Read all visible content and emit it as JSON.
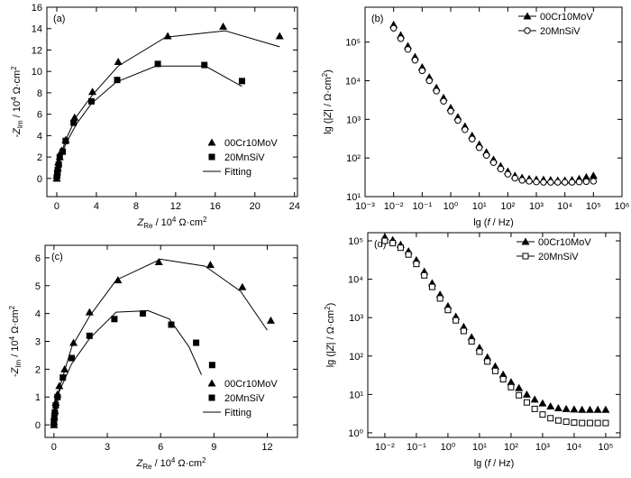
{
  "chart_data": [
    {
      "type": "scatter",
      "panel": "(a)",
      "xlabel": [
        "Z",
        "Re",
        " / 10",
        "4",
        " Ω·cm",
        "2"
      ],
      "ylabel": [
        "-Z",
        "Im",
        " / 10",
        "4",
        " Ω·cm",
        "2"
      ],
      "xlim": [
        -1,
        24.3
      ],
      "ylim": [
        -1.7,
        16
      ],
      "xticks": [
        0,
        4,
        8,
        12,
        16,
        20,
        24
      ],
      "yticks": [
        0,
        2,
        4,
        6,
        8,
        10,
        12,
        14,
        16
      ],
      "legend": "lower right",
      "series": [
        {
          "name": "00Cr10MoV",
          "color": "#000000",
          "marker": "triangle",
          "x": [
            0,
            0,
            0.05,
            0.1,
            0.15,
            0.3,
            0.5,
            0.9,
            1.8,
            3.6,
            6.2,
            11.2,
            16.8,
            22.5
          ],
          "values": [
            0,
            0.3,
            0.6,
            1,
            1.5,
            2,
            2.6,
            3.6,
            5.7,
            8.1,
            10.9,
            13.3,
            14.2,
            13.3
          ]
        },
        {
          "name": "20MnSiV",
          "color": "#000000",
          "marker": "square",
          "x": [
            0,
            0.05,
            0.1,
            0.2,
            0.3,
            0.6,
            0.9,
            1.7,
            3.5,
            6.1,
            10.2,
            14.9,
            18.7
          ],
          "values": [
            0,
            0.4,
            0.8,
            1.3,
            2,
            2.5,
            3.5,
            5.2,
            7.2,
            9.2,
            10.7,
            10.6,
            9.1
          ]
        },
        {
          "name": "Fitting",
          "color": "#000000",
          "marker": "line",
          "x": [
            0,
            0.5,
            1,
            2,
            3.6,
            6.2,
            11,
            17,
            22.5
          ],
          "values": [
            0,
            2.5,
            3.8,
            5.8,
            7.8,
            10.5,
            13.2,
            13.8,
            12.3
          ]
        },
        {
          "color": "#000000",
          "marker": "line",
          "x": [
            0,
            0.5,
            1,
            2,
            3.5,
            6,
            10,
            15,
            18.7
          ],
          "values": [
            0,
            2.3,
            3.4,
            5.1,
            7,
            9,
            10.5,
            10.5,
            8.6
          ]
        }
      ]
    },
    {
      "type": "scatter",
      "panel": "(b)",
      "xscale": "log",
      "yscale": "log",
      "xlabel": [
        "lg (",
        "f",
        " / Hz)"
      ],
      "ylabel": [
        "lg (|",
        "Z",
        "| / Ω·cm",
        "2",
        ")"
      ],
      "xlim": [
        0.001,
        1000000
      ],
      "ylim": [
        10,
        800000
      ],
      "xticks": [
        {
          "value": 0.001,
          "label": "10⁻³"
        },
        {
          "value": 0.01,
          "label": "10⁻²"
        },
        {
          "value": 0.1,
          "label": "10⁻¹"
        },
        {
          "value": 1,
          "label": "10⁰"
        },
        {
          "value": 10,
          "label": "10¹"
        },
        {
          "value": 100,
          "label": "10²"
        },
        {
          "value": 1000,
          "label": "10³"
        },
        {
          "value": 10000,
          "label": "10⁴"
        },
        {
          "value": 100000,
          "label": "10⁵"
        },
        {
          "value": 1000000,
          "label": "10⁶"
        }
      ],
      "yticks": [
        {
          "value": 10,
          "label": "10¹"
        },
        {
          "value": 100,
          "label": "10²"
        },
        {
          "value": 1000,
          "label": "10³"
        },
        {
          "value": 10000,
          "label": "10⁴"
        },
        {
          "value": 100000,
          "label": "10⁵"
        }
      ],
      "legend": "upper right",
      "series": [
        {
          "name": "00Cr10MoV",
          "color": "#000000",
          "marker": "triangle",
          "x": [
            0.01,
            0.0178,
            0.0316,
            0.0562,
            0.1,
            0.178,
            0.316,
            0.562,
            1,
            1.78,
            3.16,
            5.62,
            10,
            17.8,
            31.6,
            56.2,
            100,
            178,
            316,
            562,
            1000,
            1780,
            3160,
            5620,
            10000,
            17800,
            31600,
            56200,
            100000
          ],
          "values": [
            282000,
            151000,
            79400,
            41700,
            22400,
            12300,
            6610,
            3630,
            2000,
            1150,
            661,
            380,
            224,
            141,
            91,
            62,
            45,
            35,
            31,
            29,
            28,
            27.5,
            27,
            26.3,
            26.3,
            27,
            29,
            32,
            35
          ]
        },
        {
          "name": "20MnSiV",
          "color": "#000000",
          "marker": "circle-open",
          "x": [
            0.01,
            0.0178,
            0.0316,
            0.0562,
            0.1,
            0.178,
            0.316,
            0.562,
            1,
            1.78,
            3.16,
            5.62,
            10,
            17.8,
            31.6,
            56.2,
            100,
            178,
            316,
            562,
            1000,
            1780,
            3160,
            5620,
            10000,
            17800,
            31600,
            56200,
            100000
          ],
          "values": [
            229000,
            123000,
            64600,
            34000,
            18200,
            10000,
            5400,
            2950,
            1630,
            940,
            540,
            310,
            185,
            117,
            76,
            52,
            38,
            30,
            26.5,
            25,
            24,
            23.5,
            23.5,
            23.5,
            23.5,
            23.5,
            24,
            24.5,
            25
          ]
        }
      ]
    },
    {
      "type": "scatter",
      "panel": "(c)",
      "xlabel": [
        "Z",
        "Re",
        " / 10",
        "4",
        " Ω·cm",
        "2"
      ],
      "ylabel": [
        "-Z",
        "Im",
        " / 10",
        "4",
        " Ω·cm",
        "2"
      ],
      "xlim": [
        -0.5,
        13.7
      ],
      "ylim": [
        -0.45,
        6.45
      ],
      "xticks": [
        0,
        3,
        6,
        9,
        12
      ],
      "yticks": [
        0,
        1,
        2,
        3,
        4,
        5,
        6
      ],
      "legend": "lower right",
      "series": [
        {
          "name": "00Cr10MoV",
          "color": "#000000",
          "marker": "triangle",
          "x": [
            0,
            0,
            0.02,
            0.05,
            0.1,
            0.2,
            0.3,
            0.6,
            1.1,
            2,
            3.6,
            5.9,
            8.8,
            10.6,
            12.2
          ],
          "values": [
            0,
            0.1,
            0.3,
            0.5,
            0.8,
            1.1,
            1.4,
            2,
            2.95,
            4.05,
            5.2,
            5.85,
            5.75,
            4.95,
            3.75
          ]
        },
        {
          "name": "20MnSiV",
          "color": "#000000",
          "marker": "square",
          "x": [
            0,
            0,
            0.02,
            0.05,
            0.1,
            0.2,
            0.5,
            1,
            2,
            3.4,
            5,
            6.6,
            8,
            8.9
          ],
          "values": [
            0,
            0.1,
            0.25,
            0.45,
            0.7,
            1,
            1.7,
            2.4,
            3.2,
            3.8,
            4,
            3.6,
            2.95,
            2.15
          ]
        },
        {
          "name": "Fitting",
          "color": "#000000",
          "marker": "line",
          "x": [
            0,
            0.3,
            1,
            2,
            3.5,
            6,
            8.5,
            10.5,
            12
          ],
          "values": [
            0,
            1.3,
            2.8,
            3.9,
            5.2,
            5.95,
            5.7,
            4.8,
            3.4
          ]
        },
        {
          "color": "#000000",
          "marker": "line",
          "x": [
            0,
            0.3,
            1,
            2,
            3.5,
            5.3,
            6.5,
            7.6,
            8.3
          ],
          "values": [
            0,
            1.2,
            2.2,
            3.1,
            4.05,
            4.1,
            3.8,
            2.8,
            1.8
          ]
        }
      ]
    },
    {
      "type": "scatter",
      "panel": "(d)",
      "xscale": "log",
      "yscale": "log",
      "xlabel": [
        "lg (",
        "f",
        " / Hz)"
      ],
      "ylabel": [
        "lg (|",
        "Z",
        "| / Ω·cm",
        "2",
        ")"
      ],
      "xlim": [
        0.00288,
        288000
      ],
      "ylim": [
        0.76,
        163000
      ],
      "xticks": [
        {
          "value": 0.01,
          "label": "10⁻²"
        },
        {
          "value": 0.1,
          "label": "10⁻¹"
        },
        {
          "value": 1,
          "label": "10⁰"
        },
        {
          "value": 10,
          "label": "10¹"
        },
        {
          "value": 100,
          "label": "10²"
        },
        {
          "value": 1000,
          "label": "10³"
        },
        {
          "value": 10000,
          "label": "10⁴"
        },
        {
          "value": 100000,
          "label": "10⁵"
        }
      ],
      "yticks": [
        {
          "value": 1,
          "label": "10⁰"
        },
        {
          "value": 10,
          "label": "10¹"
        },
        {
          "value": 100,
          "label": "10²"
        },
        {
          "value": 1000,
          "label": "10³"
        },
        {
          "value": 10000,
          "label": "10⁴"
        },
        {
          "value": 100000,
          "label": "10⁵"
        }
      ],
      "legend": "upper right",
      "series": [
        {
          "name": "00Cr10MoV",
          "color": "#000000",
          "marker": "triangle",
          "x": [
            0.01,
            0.0178,
            0.0316,
            0.0562,
            0.1,
            0.178,
            0.316,
            0.562,
            1,
            1.78,
            3.16,
            5.62,
            10,
            17.8,
            31.6,
            56.2,
            100,
            178,
            316,
            562,
            1000,
            1780,
            3160,
            5620,
            10000,
            17800,
            31600,
            56200,
            100000
          ],
          "values": [
            126000,
            105000,
            79400,
            53700,
            31600,
            15800,
            7940,
            3980,
            2000,
            1070,
            575,
            309,
            166,
            93,
            54,
            33,
            21,
            14.8,
            10,
            7.4,
            5.9,
            4.9,
            4.4,
            4.2,
            4.1,
            4,
            4,
            4,
            4
          ]
        },
        {
          "name": "20MnSiV",
          "color": "#000000",
          "marker": "square-open",
          "x": [
            0.01,
            0.0178,
            0.0316,
            0.0562,
            0.1,
            0.178,
            0.316,
            0.562,
            1,
            1.78,
            3.16,
            5.62,
            10,
            17.8,
            31.6,
            56.2,
            100,
            178,
            316,
            562,
            1000,
            1780,
            3160,
            5620,
            10000,
            17800,
            31600,
            56200,
            100000
          ],
          "values": [
            100000,
            87000,
            66000,
            44000,
            25000,
            12600,
            6300,
            3160,
            1580,
            850,
            450,
            240,
            130,
            72,
            41,
            25,
            15.5,
            9.5,
            6.2,
            4.2,
            3,
            2.4,
            2.1,
            1.95,
            1.85,
            1.8,
            1.8,
            1.8,
            1.8
          ]
        }
      ]
    }
  ]
}
